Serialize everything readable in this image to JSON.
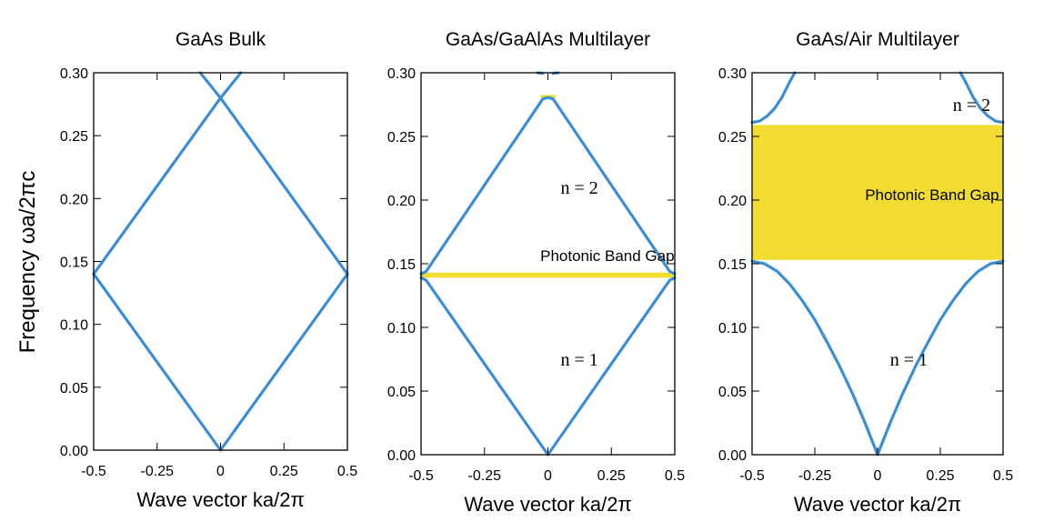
{
  "y_axis_label": "Frequency  ωa/2πc",
  "colors": {
    "band": "#3b8ed4",
    "gap": "#f2dc32",
    "axis": "#000000"
  },
  "chart_data": [
    {
      "type": "line",
      "title": "GaAs Bulk",
      "xlabel": "Wave vector  ka/2π",
      "ylabel": "Frequency  ωa/2πc",
      "xlim": [
        -0.5,
        0.5
      ],
      "ylim": [
        0.0,
        0.3
      ],
      "x_tick_labels": [
        "-0.5",
        "-0.25",
        "0",
        "0.25",
        "0.5"
      ],
      "y_tick_labels": [
        "0.00",
        "0.05",
        "0.10",
        "0.15",
        "0.20",
        "0.25",
        "0.30"
      ],
      "series": [
        {
          "x": [
            -0.5,
            0.0,
            0.5
          ],
          "y": [
            0.14,
            0.0,
            0.14
          ]
        },
        {
          "x": [
            -0.5,
            0.0,
            0.08
          ],
          "y": [
            0.14,
            0.28,
            0.3
          ]
        },
        {
          "x": [
            0.5,
            0.0,
            -0.08
          ],
          "y": [
            0.14,
            0.28,
            0.3
          ]
        }
      ],
      "band_gaps": [],
      "annotations": []
    },
    {
      "type": "line",
      "title": "GaAs/GaAlAs Multilayer",
      "xlabel": "Wave vector  ka/2π",
      "ylabel": "Frequency  ωa/2πc",
      "xlim": [
        -0.5,
        0.5
      ],
      "ylim": [
        0.0,
        0.3
      ],
      "x_tick_labels": [
        "-0.5",
        "-0.25",
        "0",
        "0.25",
        "0.5"
      ],
      "y_tick_labels": [
        "0.00",
        "0.05",
        "0.10",
        "0.15",
        "0.20",
        "0.25",
        "0.30"
      ],
      "series": [
        {
          "x": [
            -0.5,
            -0.48,
            0.0,
            0.48,
            0.5
          ],
          "y": [
            0.139,
            0.137,
            0.0,
            0.137,
            0.139
          ]
        },
        {
          "x": [
            -0.5,
            -0.48,
            -0.02,
            0.0,
            0.02,
            0.48,
            0.5
          ],
          "y": [
            0.142,
            0.144,
            0.2795,
            0.2805,
            0.2795,
            0.144,
            0.142
          ]
        },
        {
          "x": [
            -0.02,
            -0.04
          ],
          "y": [
            0.2995,
            0.3
          ]
        },
        {
          "x": [
            0.02,
            0.04
          ],
          "y": [
            0.2995,
            0.3
          ]
        }
      ],
      "band_gaps": [
        {
          "ymin": 0.139,
          "ymax": 0.143
        },
        {
          "ymin": 0.2805,
          "ymax": 0.2825,
          "xmin": -0.03,
          "xmax": 0.03
        }
      ],
      "annotations": [
        {
          "text": "Photonic Band Gap",
          "x": -0.03,
          "y": 0.152
        },
        {
          "text": "n = 2",
          "x": 0.05,
          "y": 0.205
        },
        {
          "text": "n = 1",
          "x": 0.05,
          "y": 0.07
        }
      ]
    },
    {
      "type": "line",
      "title": "GaAs/Air Multilayer",
      "xlabel": "Wave vector  ka/2π",
      "ylabel": "Frequency  ωa/2πc",
      "xlim": [
        -0.5,
        0.5
      ],
      "ylim": [
        0.0,
        0.3
      ],
      "x_tick_labels": [
        "-0.5",
        "-0.25",
        "0",
        "0.25",
        "0.5"
      ],
      "y_tick_labels": [
        "0.00",
        "0.05",
        "0.10",
        "0.15",
        "0.20",
        "0.25",
        "0.30"
      ],
      "series": [
        {
          "x": [
            -0.5,
            -0.45,
            -0.4,
            -0.35,
            -0.3,
            -0.25,
            -0.2,
            -0.15,
            -0.1,
            -0.05,
            0.0,
            0.05,
            0.1,
            0.15,
            0.2,
            0.25,
            0.3,
            0.35,
            0.4,
            0.45,
            0.5
          ],
          "y": [
            0.152,
            0.15,
            0.144,
            0.134,
            0.121,
            0.106,
            0.088,
            0.069,
            0.048,
            0.025,
            0.0,
            0.025,
            0.048,
            0.069,
            0.088,
            0.106,
            0.121,
            0.134,
            0.144,
            0.15,
            0.152
          ]
        },
        {
          "x": [
            -0.5,
            -0.47,
            -0.44,
            -0.41,
            -0.38,
            -0.35,
            -0.33
          ],
          "y": [
            0.261,
            0.262,
            0.266,
            0.272,
            0.281,
            0.293,
            0.3
          ]
        },
        {
          "x": [
            0.5,
            0.47,
            0.44,
            0.41,
            0.38,
            0.35,
            0.33
          ],
          "y": [
            0.261,
            0.262,
            0.266,
            0.272,
            0.281,
            0.293,
            0.3
          ]
        }
      ],
      "band_gaps": [
        {
          "ymin": 0.153,
          "ymax": 0.259
        }
      ],
      "annotations": [
        {
          "text": "Photonic Band Gap",
          "x": -0.05,
          "y": 0.2
        },
        {
          "text": "n = 2",
          "x": 0.3,
          "y": 0.27
        },
        {
          "text": "n = 1",
          "x": 0.05,
          "y": 0.07
        }
      ]
    }
  ]
}
